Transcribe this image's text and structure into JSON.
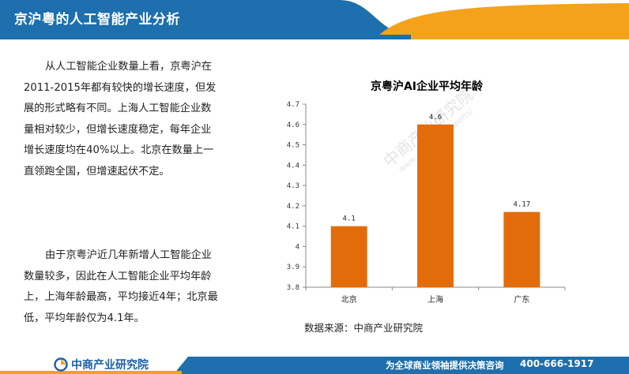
{
  "header": {
    "title": "京沪粤的人工智能产业分析",
    "colors": {
      "blue": "#1d6fad",
      "orange": "#f5a21b"
    }
  },
  "left_text": {
    "paragraph1": "从人工智能企业数量上看，京粤沪在2011-2015年都有较快的增长速度，但发展的形式略有不同。上海人工智能企业数量相对较少，但增长速度稳定，每年企业增长速度均在40%以上。北京在数量上一直领跑全国，但增速起伏不定。",
    "paragraph2": "由于京粤沪近几年新增人工智能企业数量较多，因此在人工智能企业平均年龄上，上海年龄最高，平均接近4年；北京最低，平均年龄仅为4.1年。"
  },
  "chart_data": {
    "type": "bar",
    "title": "京粤沪AI企业平均年龄",
    "categories": [
      "北京",
      "上海",
      "广东"
    ],
    "values": [
      4.1,
      4.6,
      4.17
    ],
    "value_labels": [
      "4.1",
      "4.6",
      "4.17"
    ],
    "ylim": [
      3.8,
      4.7
    ],
    "yticks": [
      "3.8",
      "3.9",
      "4",
      "4.1",
      "4.2",
      "4.3",
      "4.4",
      "4.5",
      "4.6",
      "4.7"
    ],
    "bar_color": "#e36c0a",
    "grid": false,
    "xlabel": "",
    "ylabel": ""
  },
  "source": "数据来源：中商产业研究院",
  "watermark": {
    "text": "中商产业研究院",
    "url": "www.askci.com/reports/"
  },
  "footer": {
    "logo_text": "中商产业研究院",
    "slogan": "为全球商业领袖提供决策咨询",
    "phone": "400-666-1917",
    "colors": {
      "blue": "#1d6fad",
      "orange": "#f5a21b"
    }
  }
}
